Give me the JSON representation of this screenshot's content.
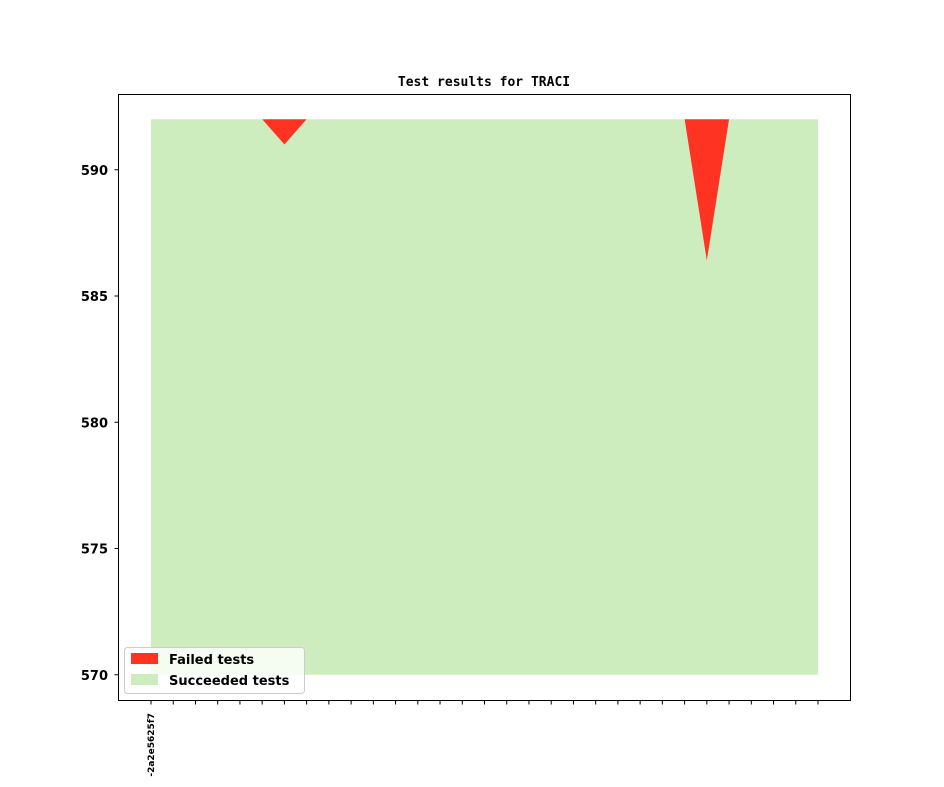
{
  "chart_data": {
    "type": "area",
    "title": "Test results for TRACI",
    "xlabel": "",
    "ylabel": "",
    "x_tick_labels": [
      "-2a2e5625f7"
    ],
    "x_count": 31,
    "ylim": [
      569,
      593
    ],
    "yticks": [
      570,
      575,
      580,
      585,
      590
    ],
    "grid": false,
    "legend_position": "lower-left",
    "series": [
      {
        "name": "Failed tests",
        "color": "#ff3322",
        "lower": [
          592,
          592,
          592,
          592,
          592,
          592,
          591,
          592,
          592,
          592,
          592,
          592,
          592,
          592,
          592,
          592,
          592,
          592,
          592,
          592,
          592,
          592,
          592,
          592,
          592,
          586.4,
          592,
          592,
          592,
          592,
          592
        ],
        "upper": [
          592,
          592,
          592,
          592,
          592,
          592,
          592,
          592,
          592,
          592,
          592,
          592,
          592,
          592,
          592,
          592,
          592,
          592,
          592,
          592,
          592,
          592,
          592,
          592,
          592,
          592,
          592,
          592,
          592,
          592,
          592
        ]
      },
      {
        "name": "Succeeded tests",
        "color": "#ceedbf",
        "lower": [
          570,
          570,
          570,
          570,
          570,
          570,
          570,
          570,
          570,
          570,
          570,
          570,
          570,
          570,
          570,
          570,
          570,
          570,
          570,
          570,
          570,
          570,
          570,
          570,
          570,
          570,
          570,
          570,
          570,
          570,
          570
        ],
        "upper": [
          592,
          592,
          592,
          592,
          592,
          592,
          591,
          592,
          592,
          592,
          592,
          592,
          592,
          592,
          592,
          592,
          592,
          592,
          592,
          592,
          592,
          592,
          592,
          592,
          592,
          586.4,
          592,
          592,
          592,
          592,
          592
        ]
      }
    ]
  }
}
